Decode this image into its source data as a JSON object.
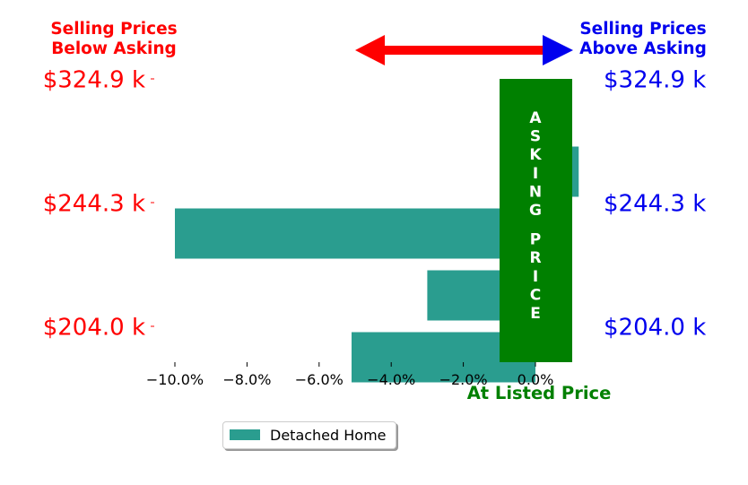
{
  "chart_data": {
    "type": "bar",
    "orientation": "horizontal",
    "categories": [
      "$204.0 k",
      "",
      "$244.3 k",
      "",
      "$324.9 k"
    ],
    "series": [
      {
        "name": "Detached Home",
        "values": [
          -5.1,
          -3.0,
          -10.0,
          1.2,
          0.0
        ],
        "color": "#2a9d8f"
      }
    ],
    "xlim": [
      -11.0,
      1.2
    ],
    "xticks": [
      -10,
      -8,
      -6,
      -4,
      -2,
      0
    ],
    "xtick_labels": [
      "−10.0%",
      "−8.0%",
      "−6.0%",
      "−4.0%",
      "−2.0%",
      "0.0%"
    ],
    "left_title": [
      "Selling Prices",
      "Below Asking"
    ],
    "right_title": [
      "Selling Prices",
      "Above Asking"
    ],
    "left_tick_labels": [
      "$204.0 k",
      "$244.3 k",
      "$324.9 k"
    ],
    "right_tick_labels": [
      "$204.0 k",
      "$244.3 k",
      "$324.9 k"
    ],
    "asking_band_text": "ASKING PRICE",
    "at_listed_label": "At Listed Price",
    "legend": {
      "label": "Detached Home",
      "placement": "bottom-center"
    },
    "colors": {
      "below": "#ff0000",
      "above": "#0000ee",
      "band": "#008000",
      "bar": "#2a9d8f"
    },
    "grid": false
  }
}
